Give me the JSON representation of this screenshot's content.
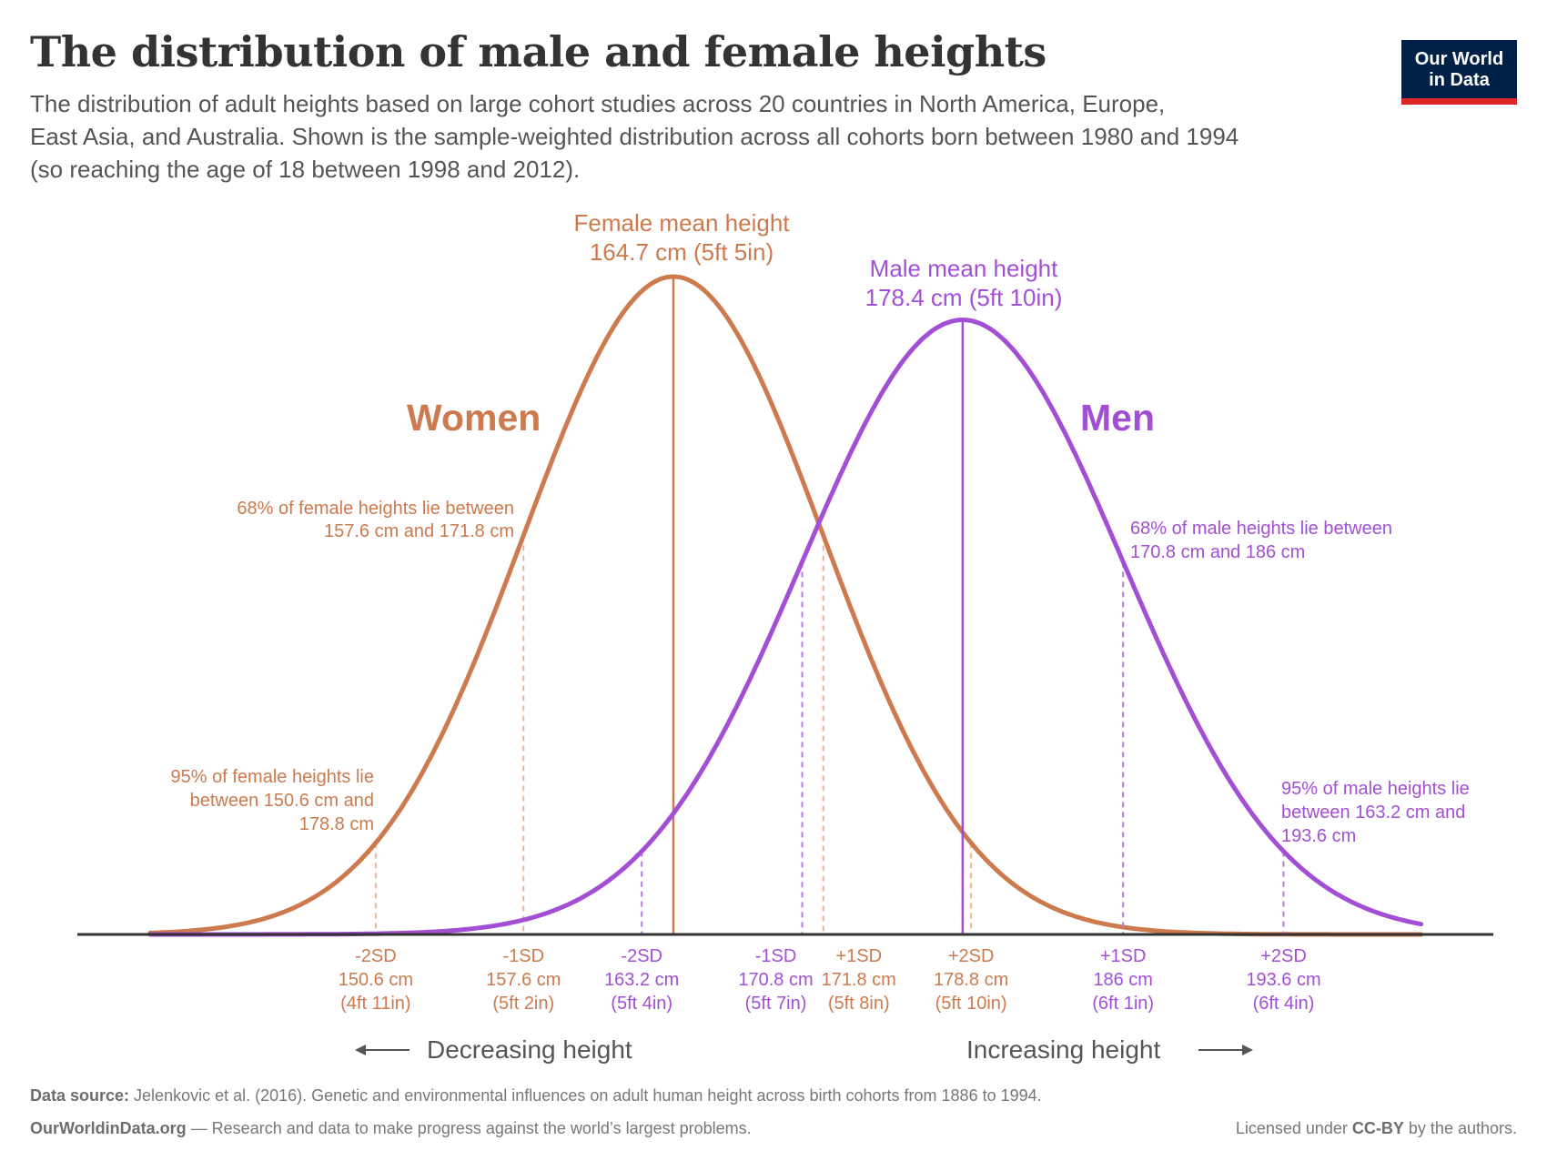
{
  "header": {
    "title": "The distribution of male and female heights",
    "subtitle_lines": [
      "The distribution of adult heights based on large cohort studies across 20 countries in North America, Europe,",
      "East Asia, and Australia. Shown is the sample-weighted distribution across all cohorts born between 1980 and 1994",
      "(so reaching the age of 18 between 1998 and 2012)."
    ],
    "logo_line1": "Our World",
    "logo_line2": "in Data"
  },
  "chart_data": {
    "type": "line",
    "xlabel_left": "Decreasing height",
    "xlabel_right": "Increasing height",
    "grid": false,
    "series": [
      {
        "name": "Women",
        "unit": "cm",
        "mean": 164.7,
        "sd": 7.1,
        "color": "#cc7a4e",
        "mean_label": [
          "Female mean height",
          "164.7 cm (5ft 5in)"
        ],
        "annot68": [
          "68% of female heights lie between",
          "157.6 cm and 171.8 cm"
        ],
        "annot95": [
          "95% of female heights lie",
          "between 150.6 cm and",
          "178.8 cm"
        ],
        "ticks": [
          {
            "sd": "-2SD",
            "cm": 150.6,
            "cm_label": "150.6 cm",
            "imp": "(4ft 11in)"
          },
          {
            "sd": "-1SD",
            "cm": 157.6,
            "cm_label": "157.6 cm",
            "imp": "(5ft 2in)"
          },
          {
            "sd": "+1SD",
            "cm": 171.8,
            "cm_label": "171.8 cm",
            "imp": "(5ft 8in)"
          },
          {
            "sd": "+2SD",
            "cm": 178.8,
            "cm_label": "178.8 cm",
            "imp": "(5ft 10in)"
          }
        ]
      },
      {
        "name": "Men",
        "unit": "cm",
        "mean": 178.4,
        "sd": 7.6,
        "color": "#a34fd5",
        "mean_label": [
          "Male mean height",
          "178.4 cm (5ft 10in)"
        ],
        "annot68": [
          "68% of male heights lie between",
          "170.8 cm and 186 cm"
        ],
        "annot95": [
          "95% of male heights lie",
          "between 163.2 cm and",
          "193.6 cm"
        ],
        "ticks": [
          {
            "sd": "-2SD",
            "cm": 163.2,
            "cm_label": "163.2 cm",
            "imp": "(5ft 4in)"
          },
          {
            "sd": "-1SD",
            "cm": 170.8,
            "cm_label": "170.8 cm",
            "imp": "(5ft 7in)"
          },
          {
            "sd": "+1SD",
            "cm": 186,
            "cm_label": "186 cm",
            "imp": "(6ft 1in)"
          },
          {
            "sd": "+2SD",
            "cm": 193.6,
            "cm_label": "193.6 cm",
            "imp": "(6ft 4in)"
          }
        ]
      }
    ]
  },
  "footer": {
    "source_label": "Data source:",
    "source_text": " Jelenkovic et al. (2016). Genetic and environmental influences on adult human height across birth cohorts from 1886 to 1994.",
    "site": "OurWorldinData.org",
    "tagline": " — Research and data to make progress against the world’s largest problems.",
    "license_pre": "Licensed under ",
    "license": "CC-BY",
    "license_post": " by the authors."
  }
}
